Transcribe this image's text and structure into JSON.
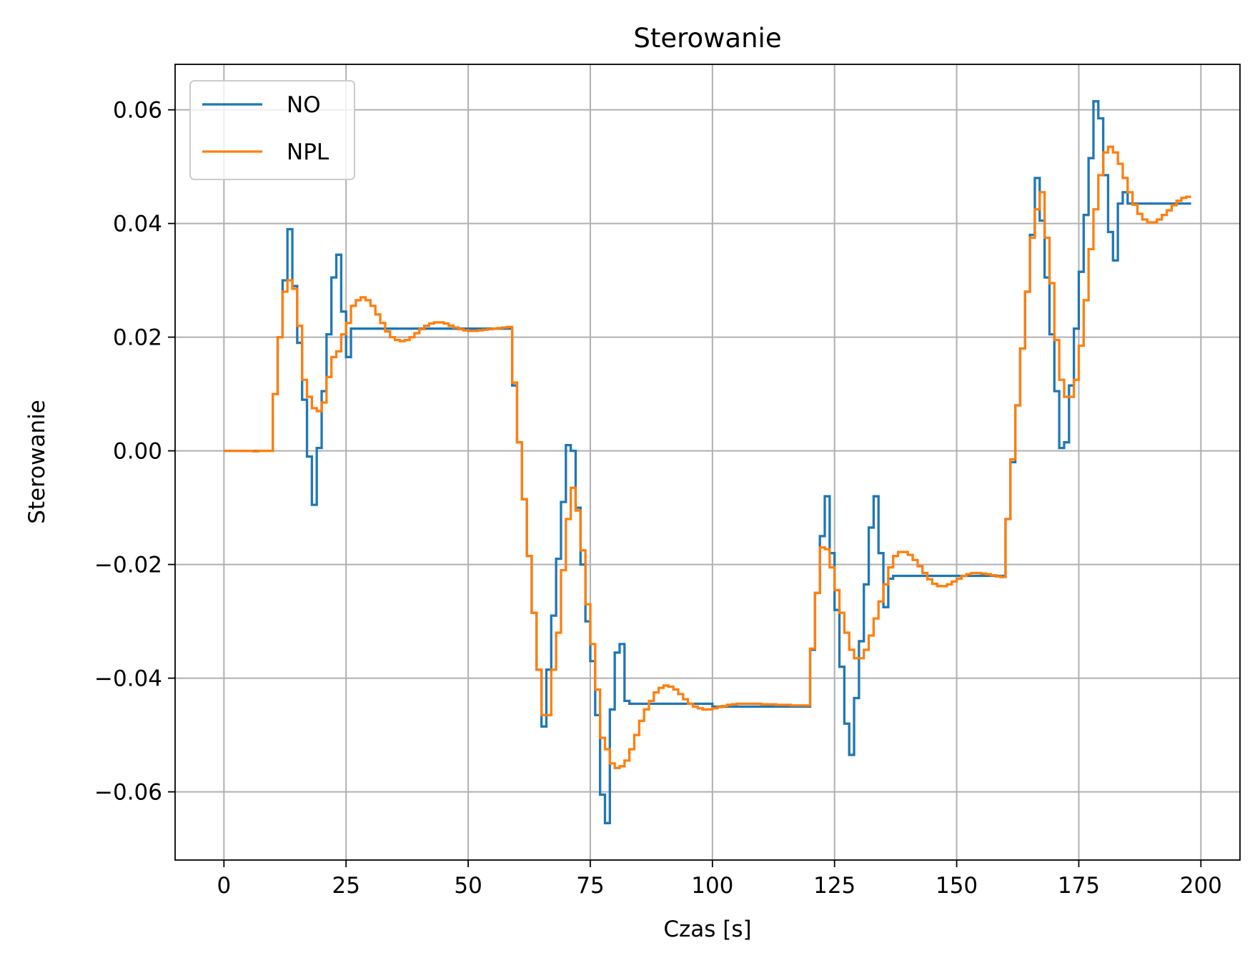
{
  "chart_data": {
    "type": "line",
    "step": "post",
    "title": "Sterowanie",
    "xlabel": "Czas [s]",
    "ylabel": "Sterowanie",
    "xlim": [
      -10,
      208
    ],
    "ylim": [
      -0.072,
      0.068
    ],
    "xticks": [
      0,
      25,
      50,
      75,
      100,
      125,
      150,
      175,
      200
    ],
    "yticks": [
      -0.06,
      -0.04,
      -0.02,
      0.0,
      0.02,
      0.04,
      0.06
    ],
    "ytick_labels": [
      "−0.06",
      "−0.04",
      "−0.02",
      "0.00",
      "0.02",
      "0.04",
      "0.06"
    ],
    "xtick_labels": [
      "0",
      "25",
      "50",
      "75",
      "100",
      "125",
      "150",
      "175",
      "200"
    ],
    "grid": true,
    "legend_position": "top-left",
    "series": [
      {
        "name": "NO",
        "color": "#1f77b4",
        "points": [
          [
            0,
            0.0
          ],
          [
            9,
            0.0
          ],
          [
            10,
            0.01
          ],
          [
            11,
            0.02
          ],
          [
            12,
            0.03
          ],
          [
            13,
            0.039
          ],
          [
            14,
            0.029
          ],
          [
            15,
            0.019
          ],
          [
            16,
            0.009
          ],
          [
            17,
            -0.001
          ],
          [
            18,
            -0.0095
          ],
          [
            19,
            0.0005
          ],
          [
            20,
            0.0105
          ],
          [
            21,
            0.0205
          ],
          [
            22,
            0.0305
          ],
          [
            23,
            0.0345
          ],
          [
            24,
            0.0245
          ],
          [
            25,
            0.0165
          ],
          [
            26,
            0.0215
          ],
          [
            58,
            0.0215
          ],
          [
            59,
            0.0115
          ],
          [
            60,
            0.0015
          ],
          [
            61,
            -0.0085
          ],
          [
            62,
            -0.0185
          ],
          [
            63,
            -0.0285
          ],
          [
            64,
            -0.0385
          ],
          [
            65,
            -0.0485
          ],
          [
            66,
            -0.0385
          ],
          [
            67,
            -0.029
          ],
          [
            68,
            -0.019
          ],
          [
            69,
            -0.009
          ],
          [
            70,
            0.001
          ],
          [
            71,
            0.0
          ],
          [
            72,
            -0.01
          ],
          [
            73,
            -0.02
          ],
          [
            74,
            -0.03
          ],
          [
            75,
            -0.037
          ],
          [
            76,
            -0.0465
          ],
          [
            77,
            -0.0605
          ],
          [
            78,
            -0.0655
          ],
          [
            79,
            -0.0455
          ],
          [
            80,
            -0.0355
          ],
          [
            81,
            -0.034
          ],
          [
            82,
            -0.044
          ],
          [
            83,
            -0.0445
          ],
          [
            90,
            -0.0445
          ],
          [
            100,
            -0.045
          ],
          [
            119,
            -0.045
          ],
          [
            120,
            -0.035
          ],
          [
            121,
            -0.025
          ],
          [
            122,
            -0.015
          ],
          [
            123,
            -0.008
          ],
          [
            124,
            -0.018
          ],
          [
            125,
            -0.028
          ],
          [
            126,
            -0.038
          ],
          [
            127,
            -0.048
          ],
          [
            128,
            -0.0535
          ],
          [
            129,
            -0.0435
          ],
          [
            130,
            -0.0335
          ],
          [
            131,
            -0.0235
          ],
          [
            132,
            -0.0135
          ],
          [
            133,
            -0.008
          ],
          [
            134,
            -0.018
          ],
          [
            135,
            -0.0275
          ],
          [
            136,
            -0.0225
          ],
          [
            137,
            -0.022
          ],
          [
            159,
            -0.022
          ],
          [
            160,
            -0.012
          ],
          [
            161,
            -0.002
          ],
          [
            162,
            0.008
          ],
          [
            163,
            0.018
          ],
          [
            164,
            0.028
          ],
          [
            165,
            0.038
          ],
          [
            166,
            0.048
          ],
          [
            167,
            0.0405
          ],
          [
            168,
            0.0305
          ],
          [
            169,
            0.0205
          ],
          [
            170,
            0.0105
          ],
          [
            171,
            0.0005
          ],
          [
            172,
            0.0015
          ],
          [
            173,
            0.0115
          ],
          [
            174,
            0.0215
          ],
          [
            175,
            0.0315
          ],
          [
            176,
            0.0415
          ],
          [
            177,
            0.0515
          ],
          [
            178,
            0.0615
          ],
          [
            179,
            0.0585
          ],
          [
            180,
            0.0485
          ],
          [
            181,
            0.0385
          ],
          [
            182,
            0.0335
          ],
          [
            183,
            0.0435
          ],
          [
            184,
            0.0455
          ],
          [
            185,
            0.0435
          ],
          [
            198,
            0.0435
          ]
        ]
      },
      {
        "name": "NPL",
        "color": "#ff7f0e",
        "points": [
          [
            0,
            0.0
          ],
          [
            5,
            0.0
          ],
          [
            6,
            -0.0001
          ],
          [
            7,
            0.0
          ],
          [
            9,
            0.0
          ],
          [
            10,
            0.01
          ],
          [
            11,
            0.02
          ],
          [
            12,
            0.028
          ],
          [
            13,
            0.03
          ],
          [
            14,
            0.0285
          ],
          [
            15,
            0.022
          ],
          [
            16,
            0.0125
          ],
          [
            17,
            0.0095
          ],
          [
            18,
            0.0075
          ],
          [
            19,
            0.007
          ],
          [
            20,
            0.0085
          ],
          [
            21,
            0.013
          ],
          [
            22,
            0.0165
          ],
          [
            23,
            0.0175
          ],
          [
            24,
            0.0205
          ],
          [
            25,
            0.0225
          ],
          [
            26,
            0.0255
          ],
          [
            27,
            0.0265
          ],
          [
            28,
            0.027
          ],
          [
            29,
            0.0265
          ],
          [
            30,
            0.0255
          ],
          [
            31,
            0.024
          ],
          [
            32,
            0.0225
          ],
          [
            33,
            0.021
          ],
          [
            34,
            0.02
          ],
          [
            35,
            0.0195
          ],
          [
            36,
            0.0193
          ],
          [
            37,
            0.0195
          ],
          [
            38,
            0.02
          ],
          [
            39,
            0.0207
          ],
          [
            40,
            0.0214
          ],
          [
            41,
            0.022
          ],
          [
            42,
            0.0224
          ],
          [
            43,
            0.0226
          ],
          [
            44,
            0.0226
          ],
          [
            45,
            0.0224
          ],
          [
            46,
            0.022
          ],
          [
            47,
            0.0217
          ],
          [
            48,
            0.0214
          ],
          [
            49,
            0.0212
          ],
          [
            50,
            0.0211
          ],
          [
            51,
            0.0211
          ],
          [
            52,
            0.0212
          ],
          [
            53,
            0.0213
          ],
          [
            54,
            0.0214
          ],
          [
            55,
            0.0215
          ],
          [
            56,
            0.0216
          ],
          [
            57,
            0.0217
          ],
          [
            58,
            0.0218
          ],
          [
            59,
            0.012
          ],
          [
            60,
            0.0015
          ],
          [
            61,
            -0.0085
          ],
          [
            62,
            -0.0185
          ],
          [
            63,
            -0.0285
          ],
          [
            64,
            -0.0385
          ],
          [
            65,
            -0.0465
          ],
          [
            66,
            -0.0465
          ],
          [
            67,
            -0.0385
          ],
          [
            68,
            -0.032
          ],
          [
            69,
            -0.021
          ],
          [
            70,
            -0.012
          ],
          [
            71,
            -0.0065
          ],
          [
            72,
            -0.0105
          ],
          [
            73,
            -0.0175
          ],
          [
            74,
            -0.027
          ],
          [
            75,
            -0.034
          ],
          [
            76,
            -0.042
          ],
          [
            77,
            -0.0505
          ],
          [
            78,
            -0.0525
          ],
          [
            79,
            -0.055
          ],
          [
            80,
            -0.0558
          ],
          [
            81,
            -0.0555
          ],
          [
            82,
            -0.0545
          ],
          [
            83,
            -0.0525
          ],
          [
            84,
            -0.05
          ],
          [
            85,
            -0.0475
          ],
          [
            86,
            -0.0455
          ],
          [
            87,
            -0.044
          ],
          [
            88,
            -0.0425
          ],
          [
            89,
            -0.0417
          ],
          [
            90,
            -0.0413
          ],
          [
            91,
            -0.0415
          ],
          [
            92,
            -0.042
          ],
          [
            93,
            -0.0428
          ],
          [
            94,
            -0.0437
          ],
          [
            95,
            -0.0445
          ],
          [
            96,
            -0.045
          ],
          [
            97,
            -0.0453
          ],
          [
            98,
            -0.0455
          ],
          [
            99,
            -0.0455
          ],
          [
            100,
            -0.0453
          ],
          [
            101,
            -0.0451
          ],
          [
            102,
            -0.0449
          ],
          [
            103,
            -0.0447
          ],
          [
            104,
            -0.0446
          ],
          [
            105,
            -0.0445
          ],
          [
            107,
            -0.0445
          ],
          [
            110,
            -0.0446
          ],
          [
            113,
            -0.0447
          ],
          [
            116,
            -0.0448
          ],
          [
            119,
            -0.0448
          ],
          [
            120,
            -0.0348
          ],
          [
            121,
            -0.025
          ],
          [
            122,
            -0.017
          ],
          [
            123,
            -0.0173
          ],
          [
            124,
            -0.0205
          ],
          [
            125,
            -0.0245
          ],
          [
            126,
            -0.0285
          ],
          [
            127,
            -0.032
          ],
          [
            128,
            -0.035
          ],
          [
            129,
            -0.0365
          ],
          [
            130,
            -0.0365
          ],
          [
            131,
            -0.035
          ],
          [
            132,
            -0.0325
          ],
          [
            133,
            -0.0295
          ],
          [
            134,
            -0.0265
          ],
          [
            135,
            -0.0235
          ],
          [
            136,
            -0.0205
          ],
          [
            137,
            -0.0185
          ],
          [
            138,
            -0.0178
          ],
          [
            139,
            -0.0178
          ],
          [
            140,
            -0.0183
          ],
          [
            141,
            -0.0192
          ],
          [
            142,
            -0.0203
          ],
          [
            143,
            -0.0215
          ],
          [
            144,
            -0.0226
          ],
          [
            145,
            -0.0234
          ],
          [
            146,
            -0.0238
          ],
          [
            147,
            -0.0238
          ],
          [
            148,
            -0.0235
          ],
          [
            149,
            -0.023
          ],
          [
            150,
            -0.0225
          ],
          [
            151,
            -0.022
          ],
          [
            152,
            -0.0217
          ],
          [
            153,
            -0.0215
          ],
          [
            154,
            -0.0215
          ],
          [
            155,
            -0.0216
          ],
          [
            156,
            -0.0217
          ],
          [
            157,
            -0.0219
          ],
          [
            158,
            -0.0221
          ],
          [
            159,
            -0.0222
          ],
          [
            160,
            -0.012
          ],
          [
            161,
            -0.0015
          ],
          [
            162,
            0.008
          ],
          [
            163,
            0.018
          ],
          [
            164,
            0.028
          ],
          [
            165,
            0.0375
          ],
          [
            166,
            0.0425
          ],
          [
            167,
            0.0455
          ],
          [
            168,
            0.0375
          ],
          [
            169,
            0.0295
          ],
          [
            170,
            0.0195
          ],
          [
            171,
            0.0125
          ],
          [
            172,
            0.0095
          ],
          [
            173,
            0.0095
          ],
          [
            174,
            0.0125
          ],
          [
            175,
            0.0185
          ],
          [
            176,
            0.0265
          ],
          [
            177,
            0.0355
          ],
          [
            178,
            0.0425
          ],
          [
            179,
            0.0485
          ],
          [
            180,
            0.0525
          ],
          [
            181,
            0.0535
          ],
          [
            182,
            0.0525
          ],
          [
            183,
            0.0505
          ],
          [
            184,
            0.048
          ],
          [
            185,
            0.0455
          ],
          [
            186,
            0.0433
          ],
          [
            187,
            0.0417
          ],
          [
            188,
            0.0407
          ],
          [
            189,
            0.0402
          ],
          [
            190,
            0.0402
          ],
          [
            191,
            0.0407
          ],
          [
            192,
            0.0415
          ],
          [
            193,
            0.0423
          ],
          [
            194,
            0.0432
          ],
          [
            195,
            0.044
          ],
          [
            196,
            0.0445
          ],
          [
            197,
            0.0447
          ],
          [
            198,
            0.0447
          ]
        ]
      }
    ]
  }
}
